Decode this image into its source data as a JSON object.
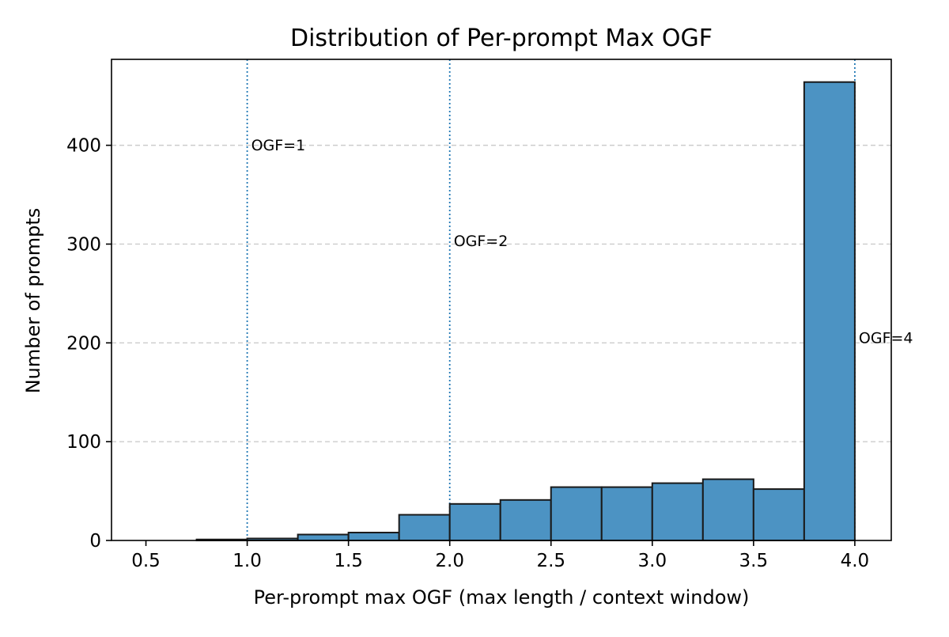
{
  "chart_data": {
    "type": "bar",
    "title": "Distribution of Per-prompt Max OGF",
    "xlabel": "Per-prompt max OGF (max length / context window)",
    "ylabel": "Number of prompts",
    "xlim": [
      0.33,
      4.18
    ],
    "ylim": [
      0,
      487
    ],
    "xticks": [
      0.5,
      1.0,
      1.5,
      2.0,
      2.5,
      3.0,
      3.5,
      4.0
    ],
    "xtick_labels": [
      "0.5",
      "1.0",
      "1.5",
      "2.0",
      "2.5",
      "3.0",
      "3.5",
      "4.0"
    ],
    "yticks": [
      0,
      100,
      200,
      300,
      400
    ],
    "ytick_labels": [
      "0",
      "100",
      "200",
      "300",
      "400"
    ],
    "grid": "y-dashed",
    "bar_color": "#4c93c3",
    "bar_edge_color": "#1a1a1a",
    "bins": [
      {
        "start": 0.75,
        "end": 1.0,
        "count": 1
      },
      {
        "start": 1.0,
        "end": 1.25,
        "count": 2
      },
      {
        "start": 1.25,
        "end": 1.5,
        "count": 6
      },
      {
        "start": 1.5,
        "end": 1.75,
        "count": 8
      },
      {
        "start": 1.75,
        "end": 2.0,
        "count": 26
      },
      {
        "start": 2.0,
        "end": 2.25,
        "count": 37
      },
      {
        "start": 2.25,
        "end": 2.5,
        "count": 41
      },
      {
        "start": 2.5,
        "end": 2.75,
        "count": 54
      },
      {
        "start": 2.75,
        "end": 3.0,
        "count": 54
      },
      {
        "start": 3.0,
        "end": 3.25,
        "count": 58
      },
      {
        "start": 3.25,
        "end": 3.5,
        "count": 62
      },
      {
        "start": 3.5,
        "end": 3.75,
        "count": 52
      },
      {
        "start": 3.75,
        "end": 4.0,
        "count": 464
      }
    ],
    "reference_lines": [
      {
        "x": 1,
        "label": "OGF=1",
        "label_y": 395
      },
      {
        "x": 2,
        "label": "OGF=2",
        "label_y": 298
      },
      {
        "x": 4,
        "label": "OGF=4",
        "label_y": 200
      }
    ],
    "reference_line_color": "#1f77b4"
  }
}
